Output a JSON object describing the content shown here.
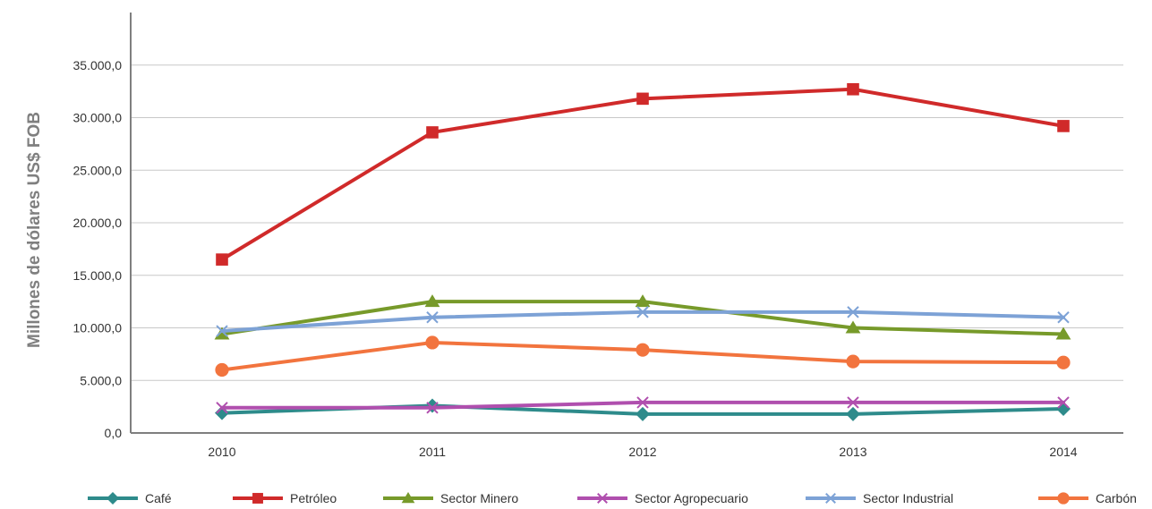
{
  "chart_data": {
    "type": "line",
    "title": "",
    "xlabel": "",
    "ylabel": "Millones de dólares US$  FOB",
    "x": [
      "2010",
      "2011",
      "2012",
      "2013",
      "2014"
    ],
    "ylim": [
      0,
      40000
    ],
    "yticks": [
      0,
      5000,
      10000,
      15000,
      20000,
      25000,
      30000,
      35000
    ],
    "ytick_labels": [
      "0,0",
      "5.000,0",
      "10.000,0",
      "15.000,0",
      "20.000,0",
      "25.000,0",
      "30.000,0",
      "35.000,0"
    ],
    "grid": true,
    "legend_position": "bottom",
    "series": [
      {
        "name": "Café",
        "values": [
          1900,
          2600,
          1800,
          1800,
          2300
        ],
        "color": "#2e8b8b",
        "marker": "diamond"
      },
      {
        "name": "Petróleo",
        "values": [
          16500,
          28600,
          31800,
          32700,
          29200
        ],
        "color": "#d02a2a",
        "marker": "square"
      },
      {
        "name": "Sector Minero",
        "values": [
          9400,
          12500,
          12500,
          10000,
          9400
        ],
        "color": "#779a2a",
        "marker": "triangle"
      },
      {
        "name": "Sector Agropecuario",
        "values": [
          2400,
          2400,
          2900,
          2900,
          2900
        ],
        "color": "#b04fae",
        "marker": "x"
      },
      {
        "name": "Sector Industrial",
        "values": [
          9700,
          11000,
          11500,
          11500,
          11000
        ],
        "color": "#7da2d6",
        "marker": "x"
      },
      {
        "name": "Carbón",
        "values": [
          6000,
          8600,
          7900,
          6800,
          6700
        ],
        "color": "#f2743e",
        "marker": "circle"
      }
    ]
  }
}
